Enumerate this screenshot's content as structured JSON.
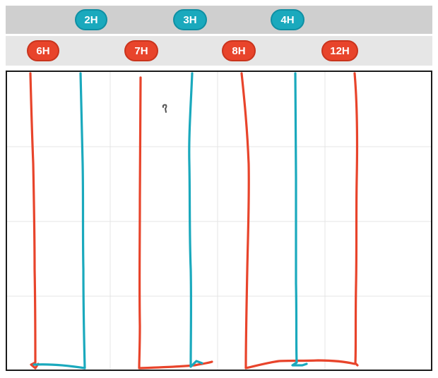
{
  "colors": {
    "teal": "#1aa9bd",
    "red": "#e8442b",
    "grid": "#e4e4e4"
  },
  "top_row": {
    "badges": [
      {
        "label": "2H",
        "color": "teal"
      },
      {
        "label": "3H",
        "color": "teal"
      },
      {
        "label": "4H",
        "color": "teal"
      }
    ]
  },
  "bottom_row": {
    "badges": [
      {
        "label": "6H",
        "color": "red"
      },
      {
        "label": "7H",
        "color": "red"
      },
      {
        "label": "8H",
        "color": "red"
      },
      {
        "label": "12H",
        "color": "red"
      }
    ]
  },
  "drawing": {
    "strokes": [
      "red",
      "teal",
      "red",
      "teal",
      "red",
      "teal",
      "red"
    ]
  }
}
